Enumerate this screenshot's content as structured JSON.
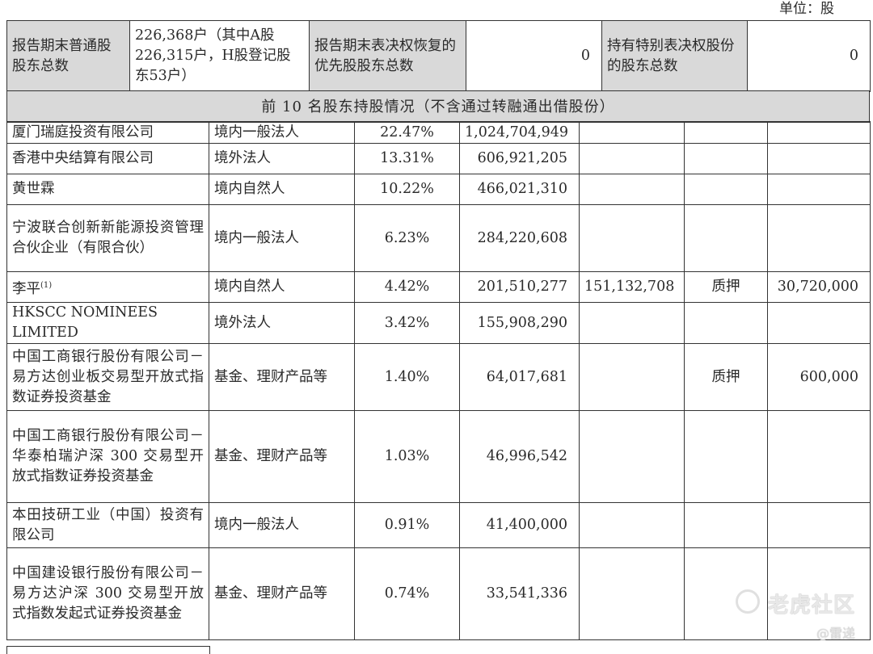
{
  "unit_label": "单位：股",
  "summary": {
    "label1": "报告期末普通股股东总数",
    "value1": "226,368户（其中A股226,315户，H股登记股东53户）",
    "label2": "报告期末表决权恢复的优先股股东总数",
    "value2": "0",
    "label3": "持有特别表决权股份的股东总数",
    "value3": "0"
  },
  "banner": "前 10 名股东持股情况（不含通过转融通出借股份）",
  "holders": [
    {
      "name": "厦门瑞庭投资有限公司",
      "type": "境内一般法人",
      "pct": "22.47%",
      "shares": "1,024,704,949",
      "restricted": "",
      "status": "",
      "qty": ""
    },
    {
      "name": "香港中央结算有限公司",
      "type": "境外法人",
      "pct": "13.31%",
      "shares": "606,921,205",
      "restricted": "",
      "status": "",
      "qty": ""
    },
    {
      "name": "黄世霖",
      "type": "境内自然人",
      "pct": "10.22%",
      "shares": "466,021,310",
      "restricted": "",
      "status": "",
      "qty": ""
    },
    {
      "name": "宁波联合创新新能源投资管理合伙企业（有限合伙）",
      "type": "境内一般法人",
      "pct": "6.23%",
      "shares": "284,220,608",
      "restricted": "",
      "status": "",
      "qty": ""
    },
    {
      "name": "李平",
      "note": "(1)",
      "type": "境内自然人",
      "pct": "4.42%",
      "shares": "201,510,277",
      "restricted": "151,132,708",
      "status": "质押",
      "qty": "30,720,000"
    },
    {
      "name": "HKSCC NOMINEES LIMITED",
      "type": "境外法人",
      "pct": "3.42%",
      "shares": "155,908,290",
      "restricted": "",
      "status": "",
      "qty": ""
    },
    {
      "name": "中国工商银行股份有限公司－易方达创业板交易型开放式指数证券投资基金",
      "type": "基金、理财产品等",
      "pct": "1.40%",
      "shares": "64,017,681",
      "restricted": "",
      "status": "质押",
      "qty": "600,000"
    },
    {
      "name": "中国工商银行股份有限公司－华泰柏瑞沪深 300 交易型开放式指数证券投资基金",
      "type": "基金、理财产品等",
      "pct": "1.03%",
      "shares": "46,996,542",
      "restricted": "",
      "status": "",
      "qty": ""
    },
    {
      "name": "本田技研工业（中国）投资有限公司",
      "type": "境内一般法人",
      "pct": "0.91%",
      "shares": "41,400,000",
      "restricted": "",
      "status": "",
      "qty": ""
    },
    {
      "name": "中国建设银行股份有限公司－易方达沪深 300 交易型开放式指数发起式证券投资基金",
      "type": "基金、理财产品等",
      "pct": "0.74%",
      "shares": "33,541,336",
      "restricted": "",
      "status": "",
      "qty": ""
    }
  ],
  "watermark": {
    "main": "老虎社区",
    "sub": "@雷递"
  }
}
